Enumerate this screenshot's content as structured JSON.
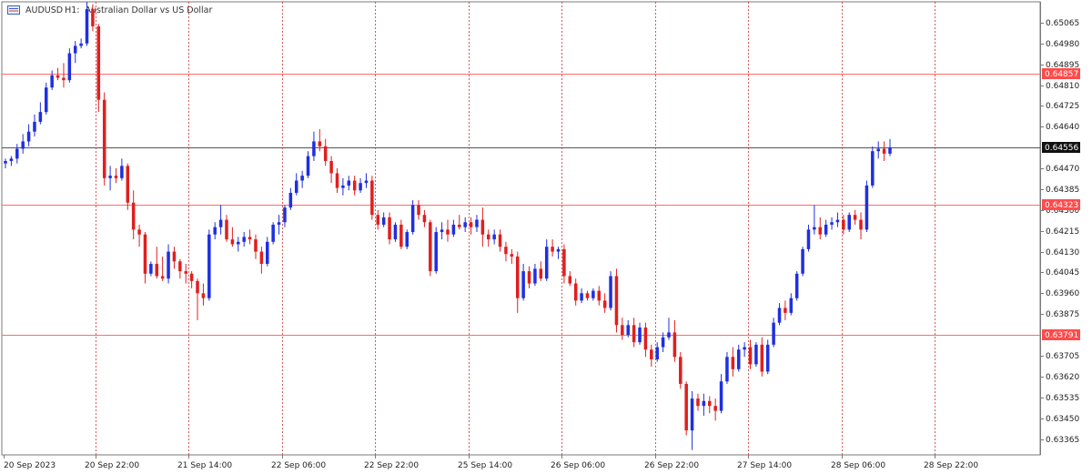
{
  "header": {
    "symbol": "AUDUSD",
    "timeframe": "H1:",
    "description": "Australian Dollar vs US Dollar"
  },
  "colors": {
    "bull": "#1f2fe0",
    "bear": "#e01f1f",
    "hline": "#ff6b6b",
    "current": "#555555",
    "grid": "#d13232",
    "axis": "#7a7a7a"
  },
  "chart_data": {
    "type": "candlestick",
    "ylim": [
      0.633,
      0.6515
    ],
    "y_ticks": [
      "0.65065",
      "0.64980",
      "0.64895",
      "0.64810",
      "0.64725",
      "0.64640",
      "0.64470",
      "0.64385",
      "0.64300",
      "0.64215",
      "0.64130",
      "0.64045",
      "0.63960",
      "0.63875",
      "0.63705",
      "0.63620",
      "0.63535",
      "0.63450",
      "0.63365"
    ],
    "x_labels": [
      "20 Sep 2023",
      "20 Sep 22:00",
      "21 Sep 14:00",
      "22 Sep 06:00",
      "22 Sep 22:00",
      "25 Sep 14:00",
      "26 Sep 06:00",
      "26 Sep 22:00",
      "27 Sep 14:00",
      "28 Sep 06:00",
      "28 Sep 22:00"
    ],
    "levels": [
      {
        "label": "0.64857",
        "value": 0.64857,
        "kind": "resistance"
      },
      {
        "label": "0.64556",
        "value": 0.64556,
        "kind": "current"
      },
      {
        "label": "0.64323",
        "value": 0.64323,
        "kind": "resistance"
      },
      {
        "label": "0.63791",
        "value": 0.63791,
        "kind": "support"
      }
    ],
    "candles": [
      [
        0.6449,
        0.6451,
        0.6447,
        0.645
      ],
      [
        0.645,
        0.6452,
        0.6448,
        0.6451
      ],
      [
        0.6451,
        0.6457,
        0.6449,
        0.6455
      ],
      [
        0.6455,
        0.6461,
        0.6453,
        0.6458
      ],
      [
        0.6458,
        0.6465,
        0.6456,
        0.6462
      ],
      [
        0.6462,
        0.6469,
        0.646,
        0.6466
      ],
      [
        0.6466,
        0.6474,
        0.6465,
        0.647
      ],
      [
        0.647,
        0.6482,
        0.6469,
        0.648
      ],
      [
        0.648,
        0.6487,
        0.6479,
        0.6485
      ],
      [
        0.6485,
        0.6488,
        0.6483,
        0.6484
      ],
      [
        0.6484,
        0.649,
        0.648,
        0.6483
      ],
      [
        0.6483,
        0.6496,
        0.6482,
        0.6494
      ],
      [
        0.6494,
        0.6499,
        0.649,
        0.6497
      ],
      [
        0.6497,
        0.65,
        0.6496,
        0.6498
      ],
      [
        0.6498,
        0.6515,
        0.6497,
        0.6512
      ],
      [
        0.6512,
        0.6514,
        0.6503,
        0.6505
      ],
      [
        0.6505,
        0.6506,
        0.647,
        0.6475
      ],
      [
        0.6475,
        0.6478,
        0.644,
        0.6443
      ],
      [
        0.6443,
        0.6448,
        0.6438,
        0.6444
      ],
      [
        0.6444,
        0.6447,
        0.6441,
        0.6443
      ],
      [
        0.6443,
        0.6451,
        0.6442,
        0.6448
      ],
      [
        0.6448,
        0.6449,
        0.643,
        0.6433
      ],
      [
        0.6433,
        0.6438,
        0.6418,
        0.6422
      ],
      [
        0.6422,
        0.6424,
        0.6415,
        0.642
      ],
      [
        0.642,
        0.6421,
        0.64,
        0.6404
      ],
      [
        0.6404,
        0.6409,
        0.6403,
        0.6408
      ],
      [
        0.6408,
        0.6415,
        0.6402,
        0.6403
      ],
      [
        0.6403,
        0.6411,
        0.6401,
        0.6402
      ],
      [
        0.6402,
        0.6416,
        0.64,
        0.6413
      ],
      [
        0.6413,
        0.6415,
        0.6406,
        0.6409
      ],
      [
        0.6409,
        0.641,
        0.6402,
        0.6405
      ],
      [
        0.6405,
        0.6408,
        0.64,
        0.6404
      ],
      [
        0.6404,
        0.6405,
        0.6398,
        0.6401
      ],
      [
        0.6401,
        0.6402,
        0.6385,
        0.6396
      ],
      [
        0.6396,
        0.64,
        0.6391,
        0.6394
      ],
      [
        0.6394,
        0.6422,
        0.6393,
        0.642
      ],
      [
        0.642,
        0.6425,
        0.6418,
        0.6423
      ],
      [
        0.6423,
        0.6432,
        0.642,
        0.6426
      ],
      [
        0.6426,
        0.6428,
        0.6417,
        0.6418
      ],
      [
        0.6418,
        0.6423,
        0.6415,
        0.6416
      ],
      [
        0.6416,
        0.6419,
        0.6413,
        0.6417
      ],
      [
        0.6417,
        0.6421,
        0.6415,
        0.6419
      ],
      [
        0.6419,
        0.6422,
        0.6416,
        0.6418
      ],
      [
        0.6418,
        0.642,
        0.641,
        0.6413
      ],
      [
        0.6413,
        0.6415,
        0.6404,
        0.6408
      ],
      [
        0.6408,
        0.6419,
        0.6407,
        0.6417
      ],
      [
        0.6417,
        0.6425,
        0.6416,
        0.6424
      ],
      [
        0.6424,
        0.6428,
        0.642,
        0.6425
      ],
      [
        0.6425,
        0.6432,
        0.6423,
        0.6431
      ],
      [
        0.6431,
        0.6439,
        0.643,
        0.6437
      ],
      [
        0.6437,
        0.6445,
        0.6436,
        0.6442
      ],
      [
        0.6442,
        0.6446,
        0.6439,
        0.6444
      ],
      [
        0.6444,
        0.6454,
        0.6443,
        0.6452
      ],
      [
        0.6452,
        0.6462,
        0.645,
        0.6458
      ],
      [
        0.6458,
        0.6463,
        0.6454,
        0.6456
      ],
      [
        0.6456,
        0.6459,
        0.6448,
        0.645
      ],
      [
        0.645,
        0.6452,
        0.6441,
        0.6445
      ],
      [
        0.6445,
        0.6447,
        0.6437,
        0.6439
      ],
      [
        0.6439,
        0.6443,
        0.6436,
        0.644
      ],
      [
        0.644,
        0.6444,
        0.6438,
        0.6442
      ],
      [
        0.6442,
        0.6444,
        0.6436,
        0.6438
      ],
      [
        0.6438,
        0.6443,
        0.6437,
        0.6441
      ],
      [
        0.6441,
        0.6445,
        0.6439,
        0.6442
      ],
      [
        0.6442,
        0.6444,
        0.6426,
        0.6428
      ],
      [
        0.6428,
        0.643,
        0.6422,
        0.6424
      ],
      [
        0.6424,
        0.6429,
        0.6423,
        0.6427
      ],
      [
        0.6427,
        0.6429,
        0.6416,
        0.6418
      ],
      [
        0.6418,
        0.6425,
        0.6417,
        0.6424
      ],
      [
        0.6424,
        0.6426,
        0.6414,
        0.6415
      ],
      [
        0.6415,
        0.6422,
        0.6414,
        0.6421
      ],
      [
        0.6421,
        0.6434,
        0.642,
        0.6432
      ],
      [
        0.6432,
        0.6434,
        0.6426,
        0.6428
      ],
      [
        0.6428,
        0.643,
        0.6423,
        0.6425
      ],
      [
        0.6425,
        0.6426,
        0.6403,
        0.6405
      ],
      [
        0.6405,
        0.6423,
        0.6404,
        0.6421
      ],
      [
        0.6421,
        0.6425,
        0.6418,
        0.6422
      ],
      [
        0.6422,
        0.6426,
        0.6417,
        0.642
      ],
      [
        0.642,
        0.6426,
        0.6419,
        0.6424
      ],
      [
        0.6424,
        0.6428,
        0.6422,
        0.6423
      ],
      [
        0.6423,
        0.6427,
        0.6421,
        0.6425
      ],
      [
        0.6425,
        0.6427,
        0.642,
        0.6423
      ],
      [
        0.6423,
        0.6428,
        0.6421,
        0.6426
      ],
      [
        0.6426,
        0.6431,
        0.6415,
        0.642
      ],
      [
        0.642,
        0.6422,
        0.6415,
        0.6418
      ],
      [
        0.6418,
        0.6422,
        0.6416,
        0.642
      ],
      [
        0.642,
        0.6422,
        0.6413,
        0.6415
      ],
      [
        0.6415,
        0.6417,
        0.6409,
        0.6412
      ],
      [
        0.6412,
        0.6414,
        0.6408,
        0.6411
      ],
      [
        0.6411,
        0.6413,
        0.6388,
        0.6394
      ],
      [
        0.6394,
        0.6408,
        0.6393,
        0.6405
      ],
      [
        0.6405,
        0.6407,
        0.6398,
        0.64
      ],
      [
        0.64,
        0.6408,
        0.6399,
        0.6406
      ],
      [
        0.6406,
        0.6409,
        0.6401,
        0.6402
      ],
      [
        0.6402,
        0.6418,
        0.6401,
        0.6415
      ],
      [
        0.6415,
        0.6418,
        0.6411,
        0.6413
      ],
      [
        0.6413,
        0.6415,
        0.641,
        0.6414
      ],
      [
        0.6414,
        0.6416,
        0.64,
        0.6403
      ],
      [
        0.6403,
        0.6405,
        0.6399,
        0.64
      ],
      [
        0.64,
        0.6402,
        0.6391,
        0.6393
      ],
      [
        0.6393,
        0.6398,
        0.6392,
        0.6396
      ],
      [
        0.6396,
        0.6397,
        0.6393,
        0.6394
      ],
      [
        0.6394,
        0.6398,
        0.6393,
        0.6397
      ],
      [
        0.6397,
        0.6399,
        0.6391,
        0.6393
      ],
      [
        0.6393,
        0.6396,
        0.6388,
        0.639
      ],
      [
        0.639,
        0.6405,
        0.6389,
        0.6403
      ],
      [
        0.6403,
        0.6406,
        0.638,
        0.6383
      ],
      [
        0.6383,
        0.6386,
        0.6377,
        0.6379
      ],
      [
        0.6379,
        0.6385,
        0.6378,
        0.6383
      ],
      [
        0.6383,
        0.6386,
        0.6374,
        0.6376
      ],
      [
        0.6376,
        0.6384,
        0.6375,
        0.6382
      ],
      [
        0.6382,
        0.6384,
        0.637,
        0.6373
      ],
      [
        0.6373,
        0.6375,
        0.6366,
        0.6369
      ],
      [
        0.6369,
        0.6376,
        0.6368,
        0.6374
      ],
      [
        0.6374,
        0.638,
        0.6372,
        0.6378
      ],
      [
        0.6378,
        0.6386,
        0.6377,
        0.638
      ],
      [
        0.638,
        0.6385,
        0.6368,
        0.637
      ],
      [
        0.637,
        0.6372,
        0.6357,
        0.6359
      ],
      [
        0.6359,
        0.636,
        0.6338,
        0.634
      ],
      [
        0.634,
        0.6356,
        0.6332,
        0.6353
      ],
      [
        0.6353,
        0.6355,
        0.6348,
        0.635
      ],
      [
        0.635,
        0.6355,
        0.6346,
        0.6352
      ],
      [
        0.6352,
        0.6354,
        0.6347,
        0.635
      ],
      [
        0.635,
        0.6353,
        0.6344,
        0.6348
      ],
      [
        0.6348,
        0.6363,
        0.6347,
        0.636
      ],
      [
        0.636,
        0.6372,
        0.6359,
        0.637
      ],
      [
        0.637,
        0.6374,
        0.6362,
        0.6365
      ],
      [
        0.6365,
        0.6375,
        0.6364,
        0.6373
      ],
      [
        0.6373,
        0.6376,
        0.637,
        0.6374
      ],
      [
        0.6374,
        0.6377,
        0.6365,
        0.6367
      ],
      [
        0.6367,
        0.6376,
        0.6366,
        0.6375
      ],
      [
        0.6375,
        0.6378,
        0.6362,
        0.6364
      ],
      [
        0.6364,
        0.6377,
        0.6363,
        0.6375
      ],
      [
        0.6375,
        0.6386,
        0.6374,
        0.6384
      ],
      [
        0.6384,
        0.6392,
        0.6383,
        0.639
      ],
      [
        0.639,
        0.6393,
        0.6385,
        0.6388
      ],
      [
        0.6388,
        0.6396,
        0.6387,
        0.6394
      ],
      [
        0.6394,
        0.6405,
        0.6393,
        0.6404
      ],
      [
        0.6404,
        0.6415,
        0.6403,
        0.6414
      ],
      [
        0.6414,
        0.6424,
        0.6413,
        0.6422
      ],
      [
        0.6422,
        0.6432,
        0.642,
        0.6423
      ],
      [
        0.6423,
        0.6427,
        0.6418,
        0.642
      ],
      [
        0.642,
        0.6426,
        0.6419,
        0.6424
      ],
      [
        0.6424,
        0.6427,
        0.6422,
        0.6425
      ],
      [
        0.6425,
        0.6429,
        0.6423,
        0.6426
      ],
      [
        0.6426,
        0.6428,
        0.642,
        0.6422
      ],
      [
        0.6422,
        0.6429,
        0.6421,
        0.6428
      ],
      [
        0.6428,
        0.643,
        0.6424,
        0.6426
      ],
      [
        0.6426,
        0.6429,
        0.6418,
        0.6422
      ],
      [
        0.6422,
        0.6442,
        0.6421,
        0.644
      ],
      [
        0.644,
        0.6456,
        0.6439,
        0.6454
      ],
      [
        0.6454,
        0.6458,
        0.6451,
        0.6455
      ],
      [
        0.6455,
        0.6458,
        0.645,
        0.6453
      ],
      [
        0.6453,
        0.6459,
        0.6452,
        0.64556
      ]
    ]
  }
}
